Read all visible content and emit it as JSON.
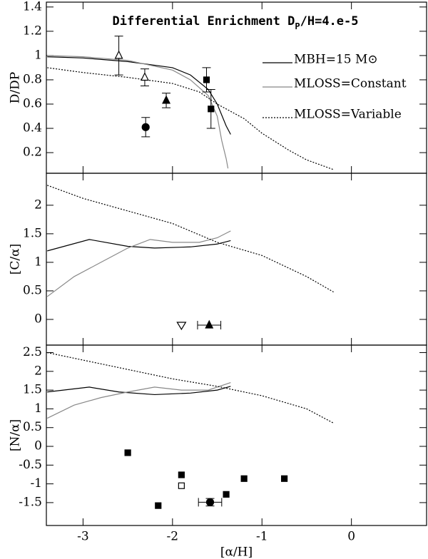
{
  "chart_data": [
    {
      "type": "line",
      "title": [
        "Differential Enrichment D",
        "P",
        "/H=4.e-5"
      ],
      "ylabel": "D/DP",
      "xlim": [
        -3.41,
        0.84
      ],
      "xticks": [
        -3,
        -2,
        -1,
        0
      ],
      "ylim": [
        0.03,
        1.44
      ],
      "yticks": [
        0.2,
        0.4,
        0.6,
        0.8,
        1,
        1.2,
        1.4
      ],
      "series": [
        {
          "name": "MBH=15 M⊙",
          "color": "#000000",
          "style": "solid",
          "x": [
            -3.4,
            -3,
            -2.5,
            -2,
            -1.8,
            -1.6,
            -1.5,
            -1.4,
            -1.35
          ],
          "values": [
            0.99,
            0.98,
            0.95,
            0.9,
            0.84,
            0.72,
            0.6,
            0.42,
            0.35
          ]
        },
        {
          "name": "MLOSS=Constant",
          "color": "#888888",
          "style": "solid",
          "x": [
            -3.4,
            -3,
            -2.5,
            -2,
            -1.8,
            -1.6,
            -1.5,
            -1.45,
            -1.4,
            -1.38
          ],
          "values": [
            1.0,
            0.99,
            0.96,
            0.88,
            0.8,
            0.67,
            0.5,
            0.3,
            0.15,
            0.07
          ]
        },
        {
          "name": "MLOSS=Variable",
          "color": "#000000",
          "style": "dotted",
          "x": [
            -3.4,
            -3,
            -2.5,
            -2,
            -1.7,
            -1.5,
            -1.2,
            -1,
            -0.7,
            -0.5,
            -0.2
          ],
          "values": [
            0.9,
            0.86,
            0.82,
            0.77,
            0.7,
            0.6,
            0.48,
            0.36,
            0.22,
            0.14,
            0.06
          ]
        }
      ],
      "points": {
        "x": [
          -2.6,
          -2.31,
          -2.07,
          -2.3,
          -1.62,
          -1.57
        ],
        "y": [
          1.0,
          0.82,
          0.63,
          0.41,
          0.8,
          0.56
        ],
        "yerr": [
          0.16,
          0.07,
          0.06,
          0.08,
          0.1,
          0.16
        ],
        "xerr": [
          null,
          null,
          null,
          null,
          null,
          null
        ],
        "markers": [
          "open-triangle",
          "open-triangle",
          "filled-triangle",
          "filled-circle",
          "filled-square",
          "filled-square"
        ]
      }
    },
    {
      "type": "line",
      "ylabel": "[C/α]",
      "xlim": [
        -3.41,
        0.84
      ],
      "xticks": [
        -3,
        -2,
        -1,
        0
      ],
      "ylim": [
        -0.45,
        2.56
      ],
      "yticks": [
        0,
        0.5,
        1,
        1.5,
        2
      ],
      "series": [
        {
          "color": "#000000",
          "style": "solid",
          "x": [
            -3.4,
            -2.93,
            -2.5,
            -2.2,
            -1.8,
            -1.5,
            -1.35
          ],
          "values": [
            1.2,
            1.4,
            1.28,
            1.25,
            1.27,
            1.32,
            1.38
          ]
        },
        {
          "color": "#888888",
          "style": "solid",
          "x": [
            -3.4,
            -3.1,
            -2.8,
            -2.5,
            -2.25,
            -2,
            -1.7,
            -1.5,
            -1.35
          ],
          "values": [
            0.4,
            0.75,
            1.0,
            1.25,
            1.4,
            1.35,
            1.35,
            1.43,
            1.55
          ]
        },
        {
          "color": "#000000",
          "style": "dotted",
          "x": [
            -3.4,
            -3,
            -2.5,
            -2,
            -1.5,
            -1,
            -0.5,
            -0.2
          ],
          "values": [
            2.35,
            2.12,
            1.9,
            1.68,
            1.35,
            1.12,
            0.75,
            0.48
          ]
        }
      ],
      "points": {
        "x": [
          -1.9,
          -1.59
        ],
        "y": [
          -0.1,
          -0.1
        ],
        "yerr": [
          null,
          null
        ],
        "xerr": [
          null,
          0.13
        ],
        "markers": [
          "open-triangle-down",
          "filled-triangle"
        ]
      }
    },
    {
      "type": "line",
      "ylabel": "[N/α]",
      "xlabel": "[α/H]",
      "xlim": [
        -3.41,
        0.84
      ],
      "xticks": [
        -3,
        -2,
        -1,
        0
      ],
      "ylim": [
        -2.11,
        2.7
      ],
      "yticks": [
        -1.5,
        -1,
        -0.5,
        0,
        0.5,
        1,
        1.5,
        2,
        2.5
      ],
      "series": [
        {
          "color": "#000000",
          "style": "solid",
          "x": [
            -3.4,
            -2.93,
            -2.6,
            -2.2,
            -1.8,
            -1.5,
            -1.35
          ],
          "values": [
            1.45,
            1.58,
            1.45,
            1.38,
            1.42,
            1.5,
            1.6
          ]
        },
        {
          "color": "#888888",
          "style": "solid",
          "x": [
            -3.4,
            -3.1,
            -2.8,
            -2.5,
            -2.2,
            -1.9,
            -1.6,
            -1.35
          ],
          "values": [
            0.75,
            1.1,
            1.3,
            1.45,
            1.58,
            1.5,
            1.5,
            1.7
          ]
        },
        {
          "color": "#000000",
          "style": "dotted",
          "x": [
            -3.4,
            -3,
            -2.5,
            -2,
            -1.5,
            -1,
            -0.5,
            -0.2
          ],
          "values": [
            2.5,
            2.3,
            2.05,
            1.8,
            1.6,
            1.35,
            1.0,
            0.62
          ]
        }
      ],
      "points": {
        "x": [
          -2.5,
          -2.16,
          -1.9,
          -1.9,
          -1.4,
          -1.2,
          -0.75,
          -1.58
        ],
        "y": [
          -0.17,
          -1.58,
          -0.76,
          -1.05,
          -1.28,
          -0.86,
          -0.86,
          -1.49
        ],
        "yerr": [
          null,
          null,
          null,
          null,
          null,
          null,
          null,
          0.1
        ],
        "xerr": [
          null,
          null,
          null,
          null,
          null,
          null,
          null,
          0.13
        ],
        "markers": [
          "filled-square",
          "filled-square",
          "filled-square",
          "open-square",
          "filled-square",
          "filled-square",
          "filled-square",
          "filled-circle"
        ]
      }
    }
  ]
}
